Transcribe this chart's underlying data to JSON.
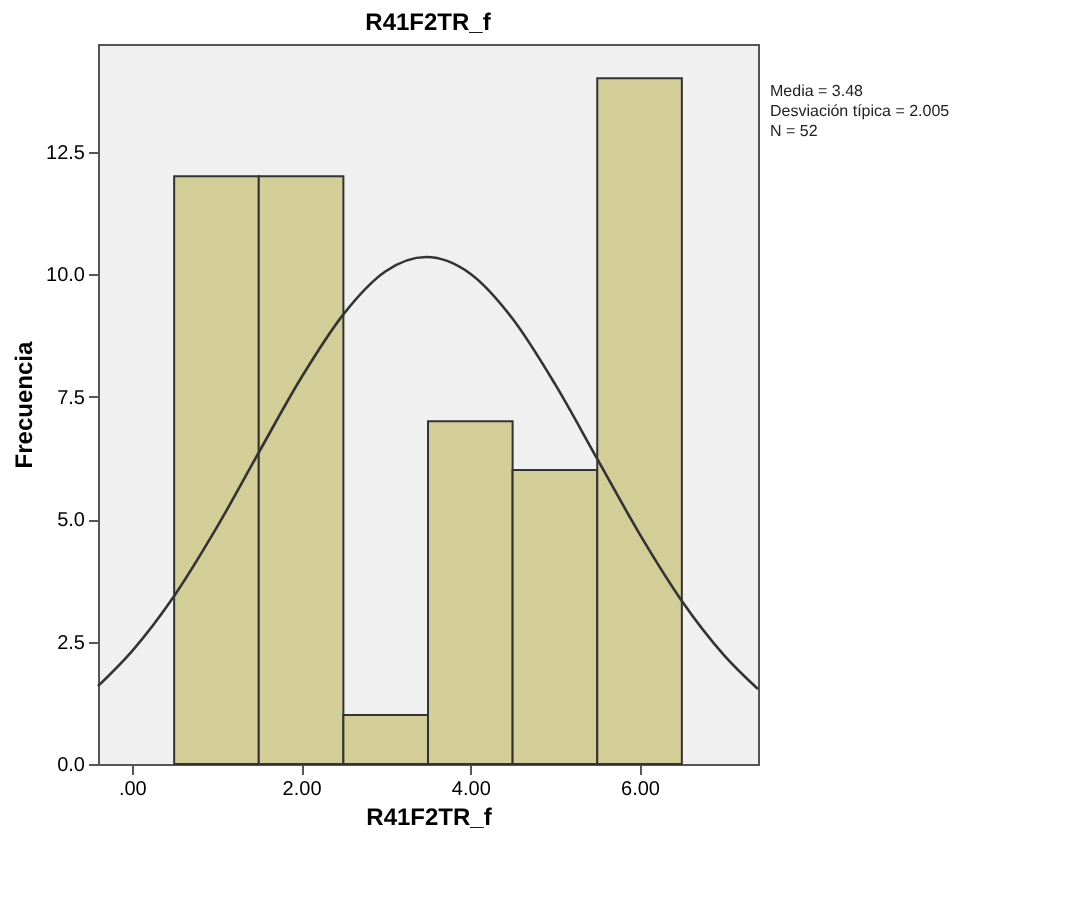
{
  "chart_data": {
    "type": "histogram",
    "title": "R41F2TR_f",
    "xlabel": "R41F2TR_f",
    "ylabel": "Frecuencia",
    "bins": [
      0.5,
      1.5,
      2.5,
      3.5,
      4.5,
      5.5,
      6.5
    ],
    "values": [
      12,
      12,
      1,
      7,
      6,
      14
    ],
    "color": "#d3cd98",
    "series": [
      {
        "type": "line",
        "color": "#333333",
        "x": [
          -0.4,
          0,
          0.5,
          1,
          1.5,
          2,
          2.5,
          3,
          3.48,
          4,
          4.5,
          5,
          5.5,
          6,
          6.5,
          7,
          7.4
        ],
        "values": [
          1.59,
          2.3,
          3.43,
          4.82,
          6.36,
          7.88,
          9.18,
          10.06,
          10.35,
          10.01,
          9.09,
          7.76,
          6.23,
          4.7,
          3.33,
          2.22,
          1.53
        ]
      }
    ],
    "xlim": [
      -0.4,
      7.4
    ],
    "xticks": [
      {
        "value": 0,
        "label": ".00"
      },
      {
        "value": 2,
        "label": "2.00"
      },
      {
        "value": 4,
        "label": "4.00"
      },
      {
        "value": 6,
        "label": "6.00"
      }
    ],
    "ylim": [
      0,
      14.7
    ],
    "yticks": [
      {
        "value": 0,
        "label": "0.0"
      },
      {
        "value": 2.5,
        "label": "2.5"
      },
      {
        "value": 5,
        "label": "5.0"
      },
      {
        "value": 7.5,
        "label": "7.5"
      },
      {
        "value": 10,
        "label": "10.0"
      },
      {
        "value": 12.5,
        "label": "12.5"
      }
    ],
    "grid": false,
    "annotations": [
      "Media = 3.48",
      "Desviación típica = 2.005",
      "N = 52"
    ]
  }
}
